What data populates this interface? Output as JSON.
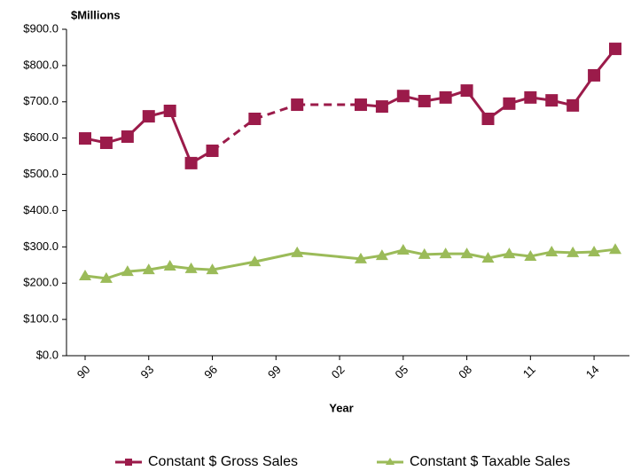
{
  "chart_data": {
    "type": "line",
    "y_unit_label": "$Millions",
    "x_label": "Year",
    "categories": [
      "90",
      null,
      null,
      "93",
      null,
      null,
      "96",
      null,
      null,
      "99",
      null,
      null,
      "02",
      null,
      null,
      "05",
      null,
      null,
      "08",
      null,
      null,
      "11",
      null,
      null,
      "14",
      null
    ],
    "series": [
      {
        "name": "Constant $ Gross Sales",
        "color": "#9b1b4a",
        "marker": "square",
        "gap_style": "dashed",
        "values": [
          599,
          587,
          604,
          660,
          675,
          531,
          565,
          null,
          653,
          null,
          692,
          null,
          null,
          692,
          687,
          716,
          702,
          712,
          731,
          653,
          695,
          712,
          704,
          690,
          773,
          846
        ]
      },
      {
        "name": "Constant $ Taxable Sales",
        "color": "#9bbb59",
        "marker": "triangle",
        "gap_style": "solid",
        "values": [
          220,
          213,
          232,
          237,
          247,
          240,
          237,
          null,
          259,
          null,
          284,
          null,
          null,
          267,
          276,
          291,
          279,
          281,
          281,
          269,
          281,
          274,
          286,
          284,
          286,
          293
        ]
      }
    ],
    "ylim": [
      0,
      900
    ],
    "yticks": [
      {
        "value": 0,
        "label": "$0.0"
      },
      {
        "value": 100,
        "label": "$100.0"
      },
      {
        "value": 200,
        "label": "$200.0"
      },
      {
        "value": 300,
        "label": "$300.0"
      },
      {
        "value": 400,
        "label": "$400.0"
      },
      {
        "value": 500,
        "label": "$500.0"
      },
      {
        "value": 600,
        "label": "$600.0"
      },
      {
        "value": 700,
        "label": "$700.0"
      },
      {
        "value": 800,
        "label": "$800.0"
      },
      {
        "value": 900,
        "label": "$900.0"
      }
    ],
    "grid": false,
    "legend": "bottom"
  }
}
